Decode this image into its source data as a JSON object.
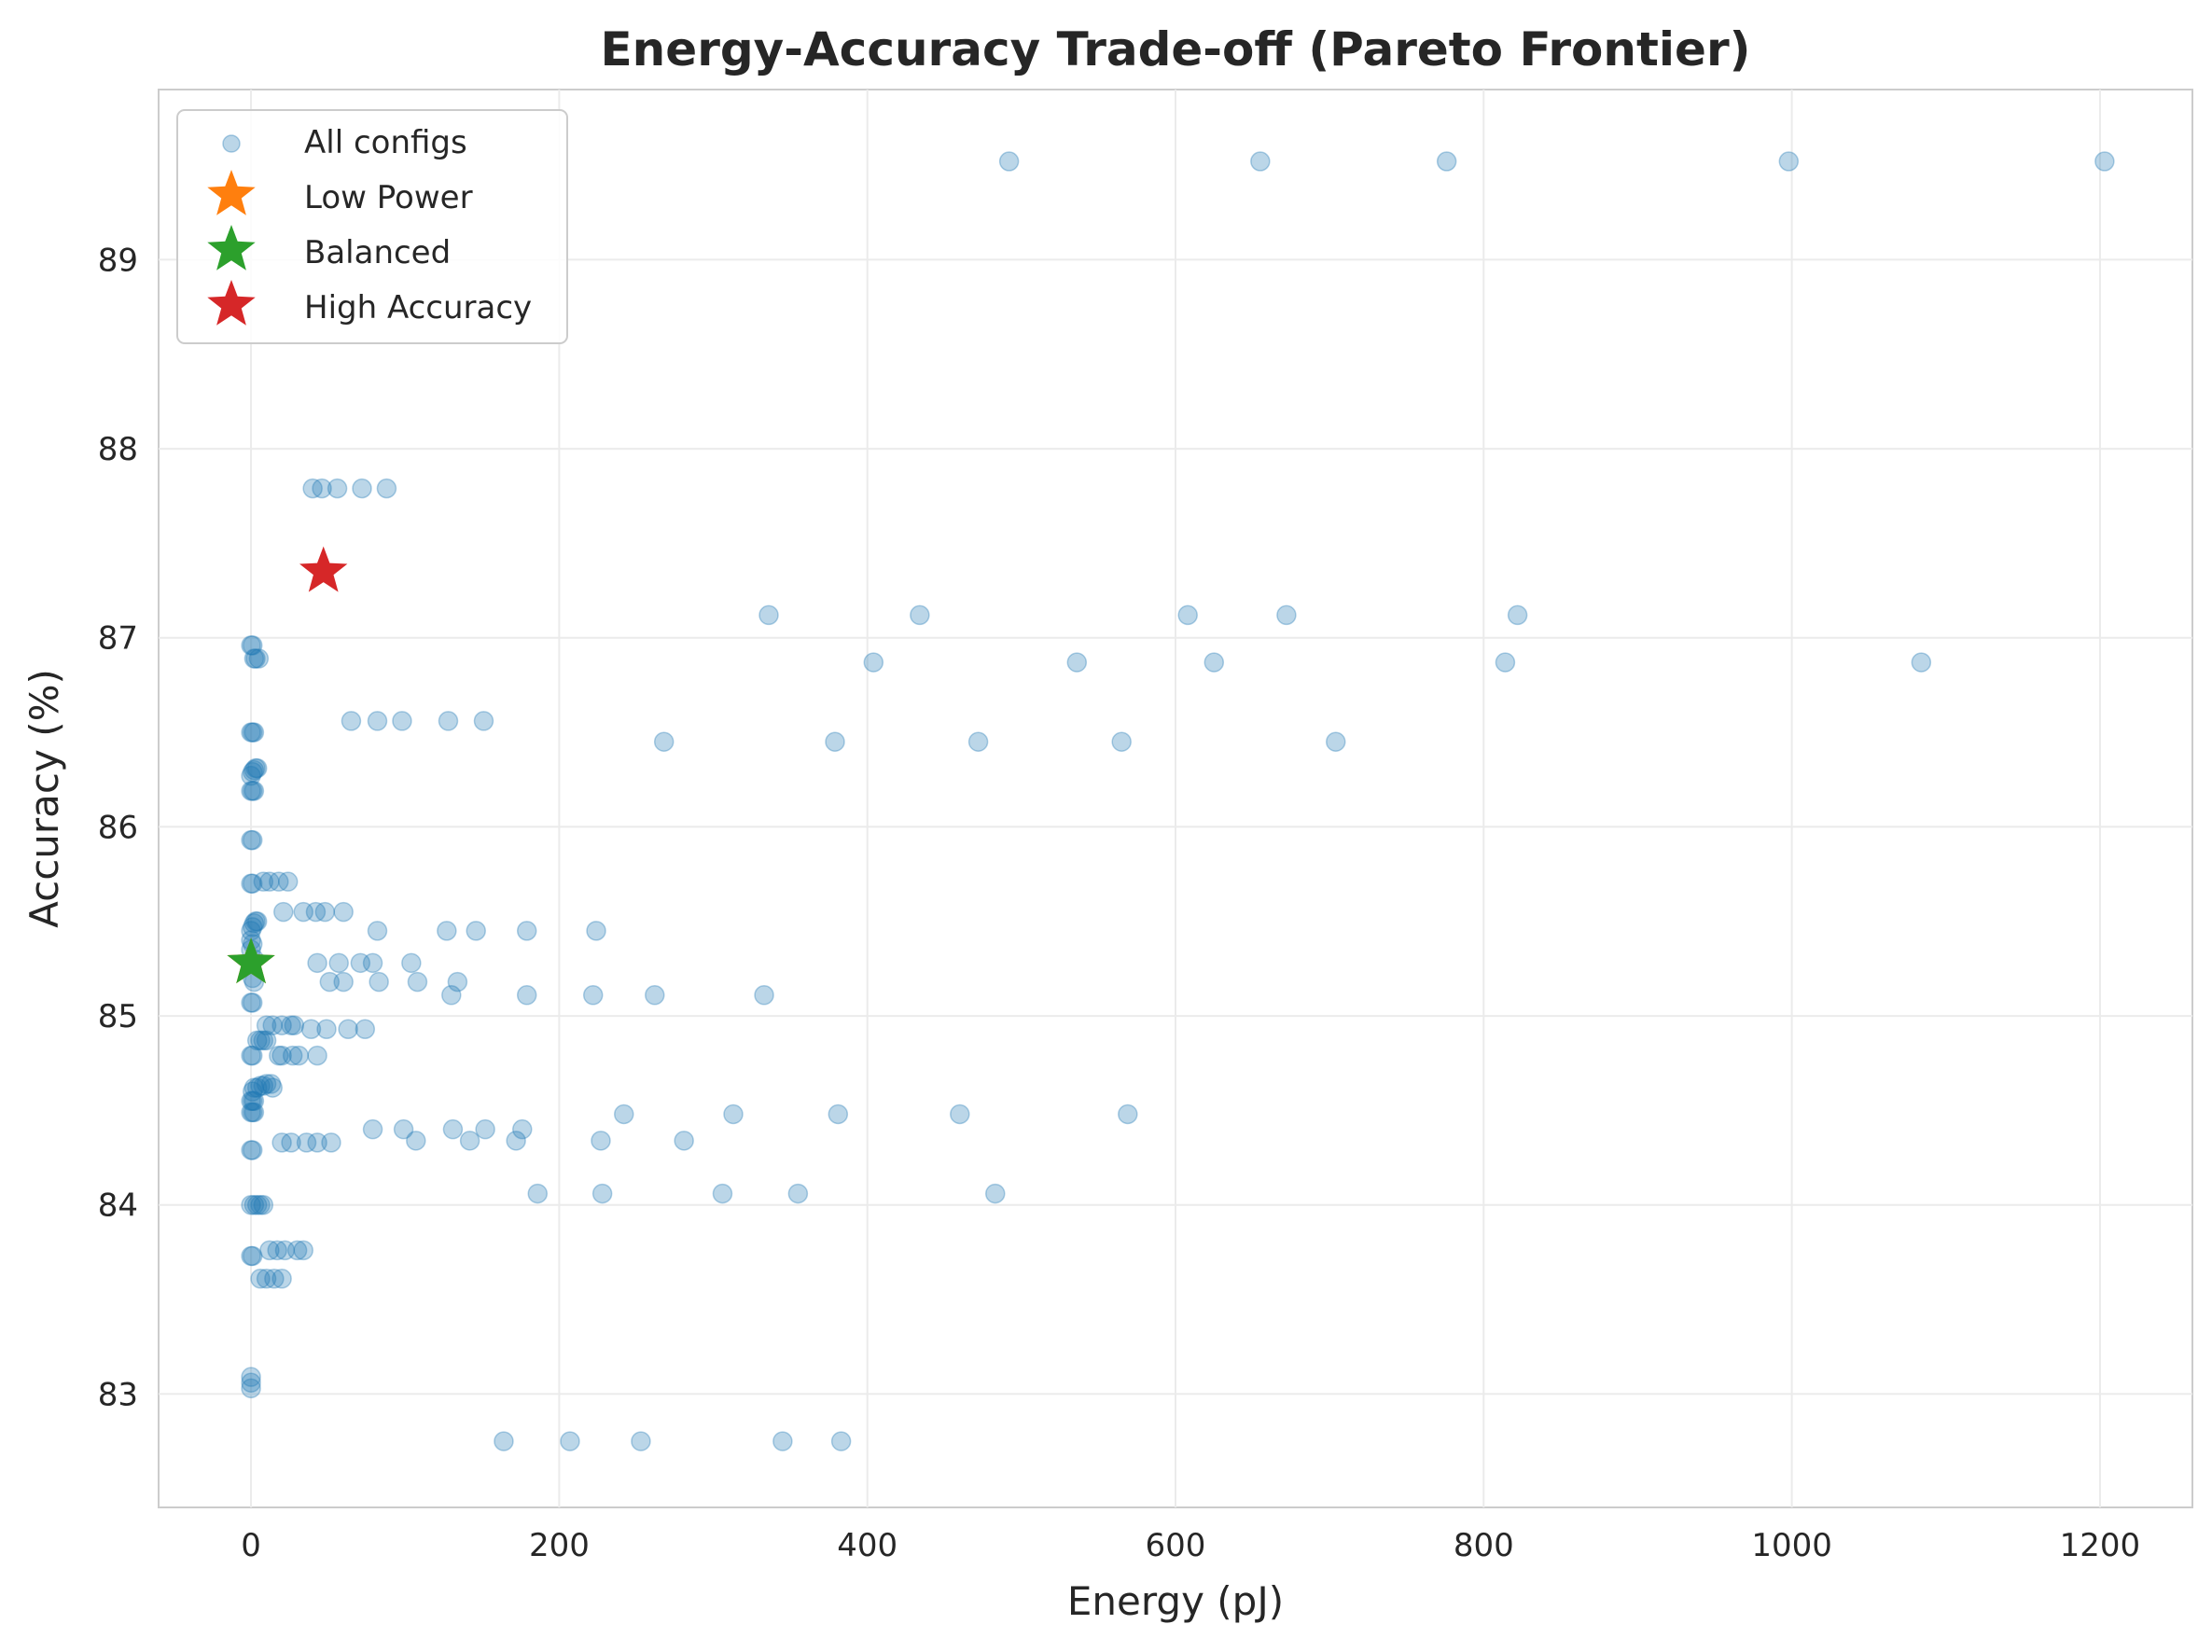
{
  "chart_data": {
    "type": "scatter",
    "title": "Energy-Accuracy Trade-off (Pareto Frontier)",
    "xlabel": "Energy (pJ)",
    "ylabel": "Accuracy (%)",
    "xlim": [
      -60,
      1260
    ],
    "ylim": [
      82.4,
      89.9
    ],
    "xticks": [
      0,
      200,
      400,
      600,
      800,
      1000,
      1200
    ],
    "yticks": [
      83,
      84,
      85,
      86,
      87,
      88,
      89
    ],
    "grid": true,
    "legend_position": "top-left",
    "series": [
      {
        "name": "All configs",
        "marker": "circle",
        "color": "#1f77b4",
        "points": [
          [
            492,
            89.52
          ],
          [
            655,
            89.52
          ],
          [
            776,
            89.52
          ],
          [
            998,
            89.52
          ],
          [
            1203,
            89.52
          ],
          [
            40,
            87.79
          ],
          [
            46,
            87.79
          ],
          [
            56,
            87.79
          ],
          [
            72,
            87.79
          ],
          [
            88,
            87.79
          ],
          [
            336,
            87.12
          ],
          [
            434,
            87.12
          ],
          [
            608,
            87.12
          ],
          [
            672,
            87.12
          ],
          [
            822,
            87.12
          ],
          [
            404,
            86.87
          ],
          [
            536,
            86.87
          ],
          [
            625,
            86.87
          ],
          [
            814,
            86.87
          ],
          [
            1084,
            86.87
          ],
          [
            0,
            86.96
          ],
          [
            1,
            86.96
          ],
          [
            2,
            86.89
          ],
          [
            3,
            86.89
          ],
          [
            5,
            86.89
          ],
          [
            65,
            86.56
          ],
          [
            82,
            86.56
          ],
          [
            98,
            86.56
          ],
          [
            128,
            86.56
          ],
          [
            151,
            86.56
          ],
          [
            268,
            86.45
          ],
          [
            379,
            86.45
          ],
          [
            472,
            86.45
          ],
          [
            565,
            86.45
          ],
          [
            704,
            86.45
          ],
          [
            0,
            86.5
          ],
          [
            1,
            86.5
          ],
          [
            2,
            86.5
          ],
          [
            0,
            86.27
          ],
          [
            1,
            86.29
          ],
          [
            2,
            86.3
          ],
          [
            3,
            86.31
          ],
          [
            4,
            86.31
          ],
          [
            0,
            86.19
          ],
          [
            1,
            86.19
          ],
          [
            2,
            86.19
          ],
          [
            0,
            85.93
          ],
          [
            1,
            85.93
          ],
          [
            0,
            85.7
          ],
          [
            1,
            85.7
          ],
          [
            8,
            85.71
          ],
          [
            12,
            85.71
          ],
          [
            18,
            85.71
          ],
          [
            24,
            85.71
          ],
          [
            21,
            85.55
          ],
          [
            34,
            85.55
          ],
          [
            42,
            85.55
          ],
          [
            48,
            85.55
          ],
          [
            60,
            85.55
          ],
          [
            0,
            85.45
          ],
          [
            1,
            85.47
          ],
          [
            2,
            85.49
          ],
          [
            3,
            85.5
          ],
          [
            4,
            85.5
          ],
          [
            82,
            85.45
          ],
          [
            127,
            85.45
          ],
          [
            146,
            85.45
          ],
          [
            179,
            85.45
          ],
          [
            224,
            85.45
          ],
          [
            0,
            85.4
          ],
          [
            1,
            85.38
          ],
          [
            0,
            85.35
          ],
          [
            2,
            85.3
          ],
          [
            43,
            85.28
          ],
          [
            57,
            85.28
          ],
          [
            71,
            85.28
          ],
          [
            79,
            85.28
          ],
          [
            104,
            85.28
          ],
          [
            1,
            85.2
          ],
          [
            2,
            85.18
          ],
          [
            51,
            85.18
          ],
          [
            60,
            85.18
          ],
          [
            83,
            85.18
          ],
          [
            108,
            85.18
          ],
          [
            134,
            85.18
          ],
          [
            130,
            85.11
          ],
          [
            179,
            85.11
          ],
          [
            222,
            85.11
          ],
          [
            262,
            85.11
          ],
          [
            333,
            85.11
          ],
          [
            0,
            85.07
          ],
          [
            1,
            85.07
          ],
          [
            10,
            84.95
          ],
          [
            14,
            84.95
          ],
          [
            20,
            84.95
          ],
          [
            26,
            84.95
          ],
          [
            28,
            84.95
          ],
          [
            39,
            84.93
          ],
          [
            49,
            84.93
          ],
          [
            63,
            84.93
          ],
          [
            74,
            84.93
          ],
          [
            4,
            84.87
          ],
          [
            6,
            84.87
          ],
          [
            8,
            84.87
          ],
          [
            10,
            84.87
          ],
          [
            0,
            84.79
          ],
          [
            1,
            84.79
          ],
          [
            20,
            84.79
          ],
          [
            27,
            84.79
          ],
          [
            31,
            84.79
          ],
          [
            43,
            84.79
          ],
          [
            18,
            84.79
          ],
          [
            1,
            84.6
          ],
          [
            2,
            84.62
          ],
          [
            4,
            84.62
          ],
          [
            6,
            84.63
          ],
          [
            8,
            84.63
          ],
          [
            10,
            84.64
          ],
          [
            13,
            84.64
          ],
          [
            14,
            84.62
          ],
          [
            0,
            84.55
          ],
          [
            1,
            84.55
          ],
          [
            2,
            84.55
          ],
          [
            0,
            84.49
          ],
          [
            1,
            84.49
          ],
          [
            2,
            84.49
          ],
          [
            242,
            84.48
          ],
          [
            313,
            84.48
          ],
          [
            381,
            84.48
          ],
          [
            460,
            84.48
          ],
          [
            569,
            84.48
          ],
          [
            79,
            84.4
          ],
          [
            99,
            84.4
          ],
          [
            131,
            84.4
          ],
          [
            152,
            84.4
          ],
          [
            176,
            84.4
          ],
          [
            20,
            84.33
          ],
          [
            26,
            84.33
          ],
          [
            36,
            84.33
          ],
          [
            43,
            84.33
          ],
          [
            52,
            84.33
          ],
          [
            107,
            84.34
          ],
          [
            142,
            84.34
          ],
          [
            172,
            84.34
          ],
          [
            227,
            84.34
          ],
          [
            281,
            84.34
          ],
          [
            0,
            84.29
          ],
          [
            1,
            84.29
          ],
          [
            186,
            84.06
          ],
          [
            228,
            84.06
          ],
          [
            306,
            84.06
          ],
          [
            355,
            84.06
          ],
          [
            483,
            84.06
          ],
          [
            0,
            84.0
          ],
          [
            2,
            84.0
          ],
          [
            4,
            84.0
          ],
          [
            6,
            84.0
          ],
          [
            8,
            84.0
          ],
          [
            0,
            83.73
          ],
          [
            1,
            83.73
          ],
          [
            12,
            83.76
          ],
          [
            17,
            83.76
          ],
          [
            22,
            83.76
          ],
          [
            30,
            83.76
          ],
          [
            34,
            83.76
          ],
          [
            6,
            83.61
          ],
          [
            10,
            83.61
          ],
          [
            15,
            83.61
          ],
          [
            20,
            83.61
          ],
          [
            0,
            83.03
          ],
          [
            0,
            83.06
          ],
          [
            0,
            83.09
          ],
          [
            164,
            82.75
          ],
          [
            207,
            82.75
          ],
          [
            253,
            82.75
          ],
          [
            345,
            82.75
          ],
          [
            383,
            82.75
          ]
        ]
      },
      {
        "name": "Low Power",
        "marker": "star",
        "color": "#ff7f0e",
        "points": [
          [
            0,
            85.28
          ]
        ]
      },
      {
        "name": "Balanced",
        "marker": "star",
        "color": "#2ca02c",
        "points": [
          [
            0,
            85.28
          ]
        ]
      },
      {
        "name": "High Accuracy",
        "marker": "star",
        "color": "#d62728",
        "points": [
          [
            47,
            87.35
          ]
        ]
      }
    ]
  }
}
